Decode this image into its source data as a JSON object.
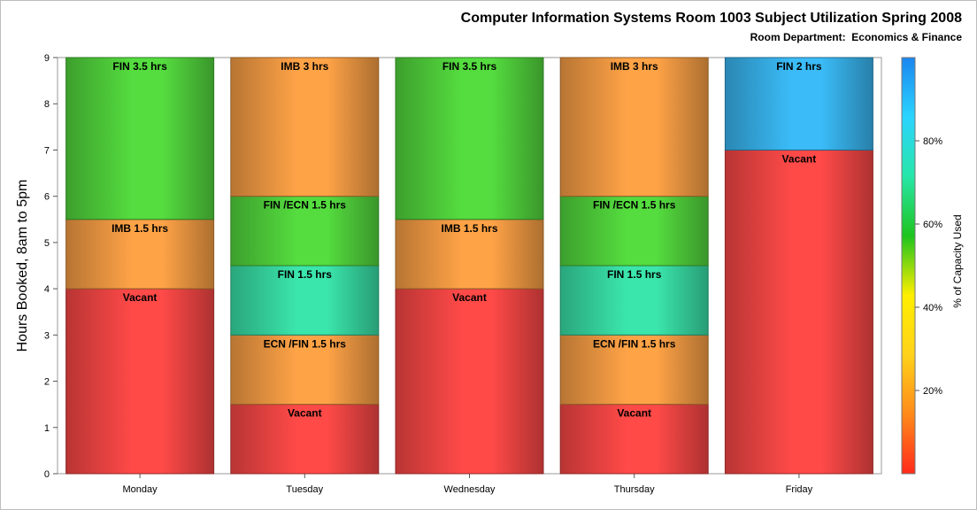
{
  "chart_data": {
    "type": "bar",
    "stacked": true,
    "title": "Computer Information Systems Room 1003 Subject Utilization Spring 2008",
    "subtitle": "Room Department:  Economics & Finance",
    "ylabel": "Hours Booked, 8am to 5pm",
    "xlabel": "",
    "ylim": [
      0,
      9
    ],
    "yticks": [
      "0",
      "1",
      "2",
      "3",
      "4",
      "5",
      "6",
      "7",
      "8",
      "9"
    ],
    "categories": [
      "Monday",
      "Tuesday",
      "Wednesday",
      "Thursday",
      "Friday"
    ],
    "stacks": [
      [
        {
          "label": "Vacant",
          "start": 0,
          "end": 4,
          "capacity_pct": 0
        },
        {
          "label": "IMB 1.5 hrs",
          "start": 4,
          "end": 5.5,
          "capacity_pct": 38
        },
        {
          "label": "FIN 3.5 hrs",
          "start": 5.5,
          "end": 9,
          "capacity_pct": 62
        }
      ],
      [
        {
          "label": "Vacant",
          "start": 0,
          "end": 1.5,
          "capacity_pct": 0
        },
        {
          "label": "ECN /FIN 1.5 hrs",
          "start": 1.5,
          "end": 3,
          "capacity_pct": 38
        },
        {
          "label": "FIN 1.5 hrs",
          "start": 3,
          "end": 4.5,
          "capacity_pct": 75
        },
        {
          "label": "FIN /ECN 1.5 hrs",
          "start": 4.5,
          "end": 6,
          "capacity_pct": 62
        },
        {
          "label": "IMB 3 hrs",
          "start": 6,
          "end": 9,
          "capacity_pct": 38
        }
      ],
      [
        {
          "label": "Vacant",
          "start": 0,
          "end": 4,
          "capacity_pct": 0
        },
        {
          "label": "IMB 1.5 hrs",
          "start": 4,
          "end": 5.5,
          "capacity_pct": 38
        },
        {
          "label": "FIN 3.5 hrs",
          "start": 5.5,
          "end": 9,
          "capacity_pct": 62
        }
      ],
      [
        {
          "label": "Vacant",
          "start": 0,
          "end": 1.5,
          "capacity_pct": 0
        },
        {
          "label": "ECN /FIN 1.5 hrs",
          "start": 1.5,
          "end": 3,
          "capacity_pct": 38
        },
        {
          "label": "FIN 1.5 hrs",
          "start": 3,
          "end": 4.5,
          "capacity_pct": 75
        },
        {
          "label": "FIN /ECN 1.5 hrs",
          "start": 4.5,
          "end": 6,
          "capacity_pct": 62
        },
        {
          "label": "IMB 3 hrs",
          "start": 6,
          "end": 9,
          "capacity_pct": 38
        }
      ],
      [
        {
          "label": "Vacant",
          "start": 0,
          "end": 7,
          "capacity_pct": 0
        },
        {
          "label": "FIN 2 hrs",
          "start": 7,
          "end": 9,
          "capacity_pct": 92
        }
      ]
    ],
    "colorbar": {
      "label": "% of Capacity Used",
      "ticks": [
        "20%",
        "40%",
        "60%",
        "80%"
      ],
      "tick_values": [
        20,
        40,
        60,
        80
      ],
      "range": [
        0,
        100
      ],
      "colors": [
        "#ff2a1a",
        "#ff8a1a",
        "#ffd21a",
        "#ffee00",
        "#1ec41e",
        "#27e6a8",
        "#2ad4ff",
        "#1a86f0"
      ]
    },
    "segment_colors": {
      "0": "#ff4a48",
      "38": "#ffa347",
      "62": "#55dd3f",
      "75": "#3be6ac",
      "92": "#3bbcf8"
    },
    "grid": false,
    "legend": "colorbar-right"
  }
}
